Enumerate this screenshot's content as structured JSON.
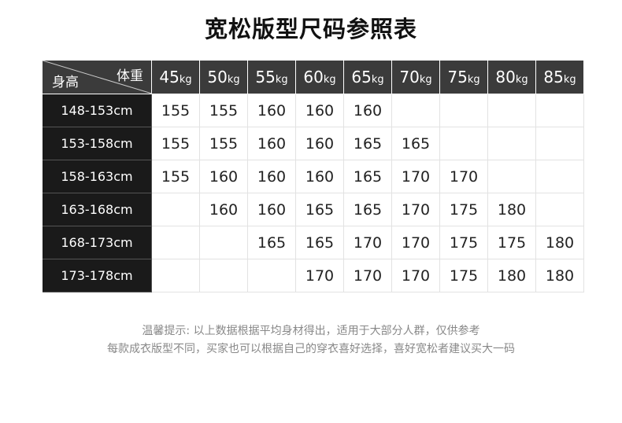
{
  "title": "宽松版型尺码参照表",
  "corner": {
    "weight_label": "体重",
    "height_label": "身高"
  },
  "weights": [
    {
      "n": "45",
      "u": "kg"
    },
    {
      "n": "50",
      "u": "kg"
    },
    {
      "n": "55",
      "u": "kg"
    },
    {
      "n": "60",
      "u": "kg"
    },
    {
      "n": "65",
      "u": "kg"
    },
    {
      "n": "70",
      "u": "kg"
    },
    {
      "n": "75",
      "u": "kg"
    },
    {
      "n": "80",
      "u": "kg"
    },
    {
      "n": "85",
      "u": "kg"
    }
  ],
  "rows": [
    {
      "height": "148-153cm",
      "sizes": [
        "155",
        "155",
        "160",
        "160",
        "160",
        "",
        "",
        "",
        ""
      ]
    },
    {
      "height": "153-158cm",
      "sizes": [
        "155",
        "155",
        "160",
        "160",
        "165",
        "165",
        "",
        "",
        ""
      ]
    },
    {
      "height": "158-163cm",
      "sizes": [
        "155",
        "160",
        "160",
        "160",
        "165",
        "170",
        "170",
        "",
        ""
      ]
    },
    {
      "height": "163-168cm",
      "sizes": [
        "",
        "160",
        "160",
        "165",
        "165",
        "170",
        "175",
        "180",
        ""
      ]
    },
    {
      "height": "168-173cm",
      "sizes": [
        "",
        "",
        "165",
        "165",
        "170",
        "170",
        "175",
        "175",
        "180"
      ]
    },
    {
      "height": "173-178cm",
      "sizes": [
        "",
        "",
        "",
        "170",
        "170",
        "170",
        "175",
        "180",
        "180"
      ]
    }
  ],
  "notes": [
    "温馨提示: 以上数据根据平均身材得出，适用于大部分人群，仅供参考",
    "每款成衣版型不同，买家也可以根据自己的穿衣喜好选择，喜好宽松者建议买大一码"
  ]
}
